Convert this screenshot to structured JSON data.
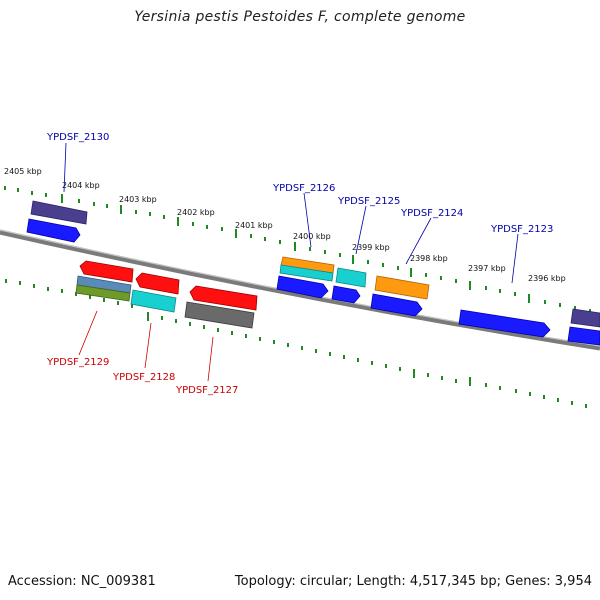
{
  "title": "Yersinia pestis Pestoides F, complete genome",
  "accession": "Accession: NC_009381",
  "summary": "Topology: circular; Length: 4,517,345 bp; Genes: 3,954",
  "scale_labels": [
    "2405 kbp",
    "2404 kbp",
    "2403 kbp",
    "2402 kbp",
    "2401 kbp",
    "2400 kbp",
    "2399 kbp",
    "2398 kbp",
    "2397 kbp",
    "2396 kbp"
  ],
  "genes_forward": [
    "YPDSF_2130",
    "YPDSF_2126",
    "YPDSF_2125",
    "YPDSF_2124",
    "YPDSF_2123"
  ],
  "genes_reverse": [
    "YPDSF_2129",
    "YPDSF_2128",
    "YPDSF_2127"
  ],
  "colors": {
    "backbone": "#8a8a8a",
    "ticks": "#1f8a1f",
    "forward_label": "#0000aa",
    "reverse_label": "#cc0000",
    "blue": "#1a1aff",
    "navy": "#4a3f8f",
    "red": "#ff1010",
    "cyan": "#18d0d0",
    "orange": "#ff9a10",
    "steel": "#5a8ab8",
    "olive": "#6e9a2a",
    "gray": "#6a6a6a"
  }
}
